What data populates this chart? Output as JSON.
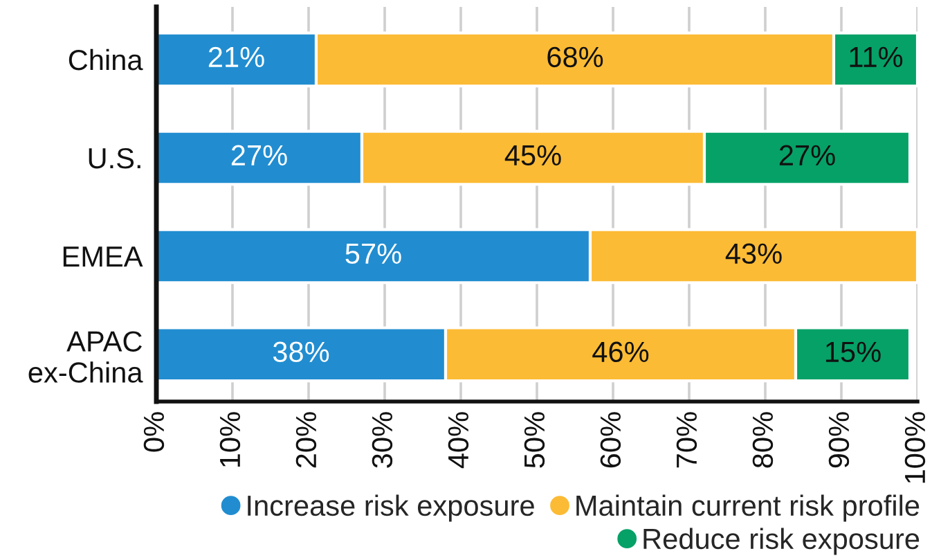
{
  "chart_data": {
    "type": "bar",
    "orientation": "horizontal",
    "stacked": true,
    "categories": [
      "China",
      "U.S.",
      "EMEA",
      "APAC\nex-China"
    ],
    "series": [
      {
        "name": "Increase risk exposure",
        "color": "#218dd0",
        "values": [
          21,
          27,
          57,
          38
        ],
        "value_labels": [
          "21%",
          "27%",
          "57%",
          "38%"
        ]
      },
      {
        "name": "Maintain current risk profile",
        "color": "#fcbb35",
        "values": [
          68,
          45,
          43,
          46
        ],
        "value_labels": [
          "68%",
          "45%",
          "43%",
          "46%"
        ]
      },
      {
        "name": "Reduce risk exposure",
        "color": "#06a167",
        "values": [
          11,
          27,
          null,
          15
        ],
        "value_labels": [
          "11%",
          "27%",
          null,
          "15%"
        ]
      }
    ],
    "xlim": [
      0,
      100
    ],
    "xticks": [
      {
        "value": 0,
        "label": "0%"
      },
      {
        "value": 10,
        "label": "10%"
      },
      {
        "value": 20,
        "label": "20%"
      },
      {
        "value": 30,
        "label": "30%"
      },
      {
        "value": 40,
        "label": "40%"
      },
      {
        "value": 50,
        "label": "50%"
      },
      {
        "value": 60,
        "label": "60%"
      },
      {
        "value": 70,
        "label": "70%"
      },
      {
        "value": 80,
        "label": "80%"
      },
      {
        "value": 90,
        "label": "90%"
      },
      {
        "value": 100,
        "label": "100%"
      }
    ],
    "grid": "x",
    "legend": "bottom"
  }
}
